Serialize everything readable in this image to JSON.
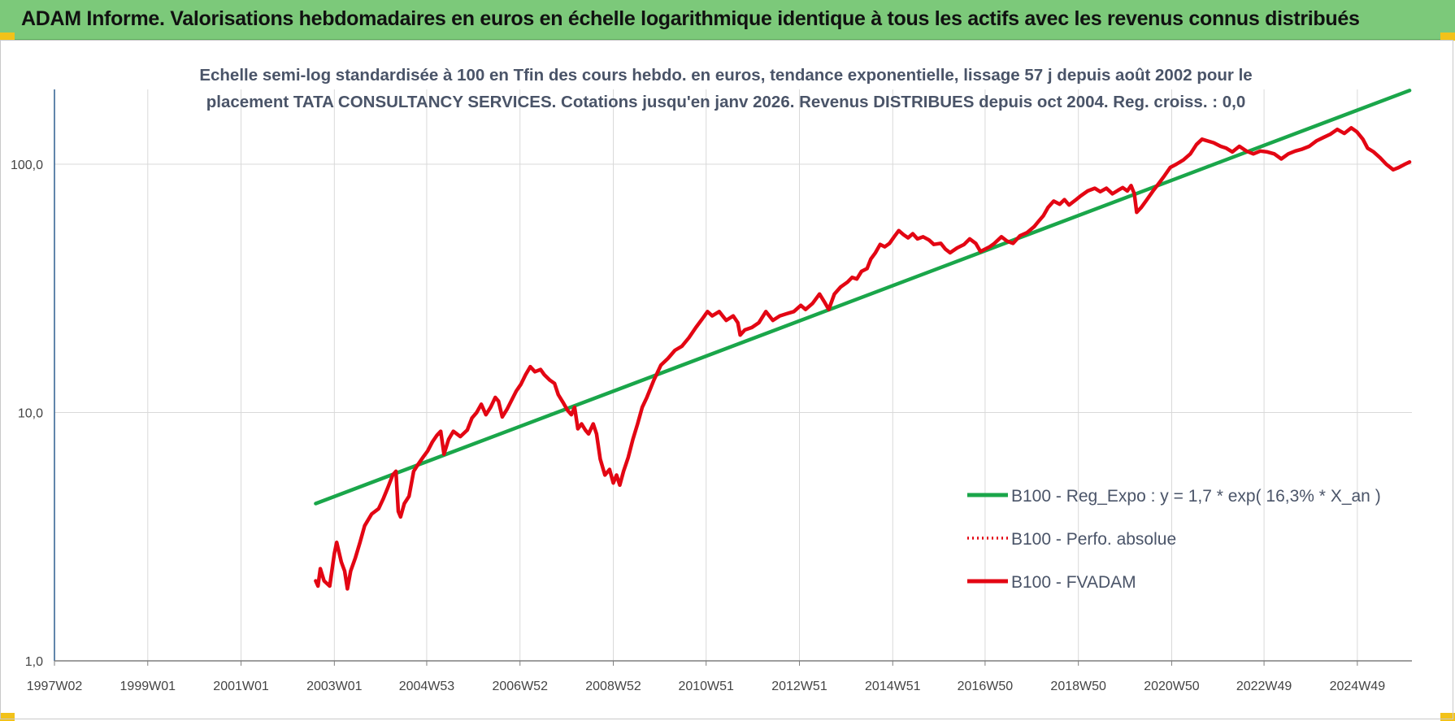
{
  "banner": {
    "title": "ADAM Informe. Valorisations hebdomadaires en euros en échelle logarithmique identique à tous les actifs avec les revenus connus distribués"
  },
  "colors": {
    "banner_bg": "#7cc97a",
    "corner_accent": "#f2c21a",
    "trend_green": "#1aa64a",
    "fvadam_red": "#e30613",
    "perfo_red": "#e30613",
    "title_color": "#4a5468",
    "grid": "#d9d9d9",
    "axis": "#2f5f8f"
  },
  "chart_data": {
    "type": "line",
    "title_lines": [
      "Echelle semi-log standardisée à 100 en Tfin des cours hebdo. en euros, tendance exponentielle, lissage 57 j depuis août 2002 pour le",
      "placement TATA CONSULTANCY SERVICES. Cotations jusqu'en janv 2026. Revenus DISTRIBUES depuis oct 2004. Reg. croiss. : 0,0"
    ],
    "y_scale": "log",
    "ylim": [
      1,
      200
    ],
    "y_ticks": [
      {
        "value": 1,
        "label": "1,0"
      },
      {
        "value": 10,
        "label": "10,0"
      },
      {
        "value": 100,
        "label": "100,0"
      }
    ],
    "xlim": [
      1997.0,
      2026.1
    ],
    "x_ticks": [
      {
        "value": 1997.0,
        "label": "1997W02"
      },
      {
        "value": 1999.0,
        "label": "1999W01"
      },
      {
        "value": 2001.0,
        "label": "2001W01"
      },
      {
        "value": 2003.0,
        "label": "2003W01"
      },
      {
        "value": 2004.98,
        "label": "2004W53"
      },
      {
        "value": 2006.98,
        "label": "2006W52"
      },
      {
        "value": 2008.98,
        "label": "2008W52"
      },
      {
        "value": 2010.97,
        "label": "2010W51"
      },
      {
        "value": 2012.97,
        "label": "2012W51"
      },
      {
        "value": 2014.97,
        "label": "2014W51"
      },
      {
        "value": 2016.95,
        "label": "2016W50"
      },
      {
        "value": 2018.95,
        "label": "2018W50"
      },
      {
        "value": 2020.95,
        "label": "2020W50"
      },
      {
        "value": 2022.93,
        "label": "2022W49"
      },
      {
        "value": 2024.93,
        "label": "2024W49"
      }
    ],
    "grid": true,
    "legend_position": "bottom-right",
    "series": [
      {
        "name": "B100 - Reg_Expo : y = 1,7 * exp( 16,3% *  X_an )",
        "style": "solid",
        "color": "#1aa64a",
        "points": [
          [
            2002.6,
            4.3
          ],
          [
            2026.05,
            198
          ]
        ]
      },
      {
        "name": "B100 - Perfo. absolue",
        "style": "dotted",
        "color": "#e30613",
        "points": []
      },
      {
        "name": "B100 - FVADAM",
        "style": "solid",
        "color": "#e30613",
        "points": [
          [
            2002.6,
            2.1
          ],
          [
            2002.65,
            2.0
          ],
          [
            2002.7,
            2.35
          ],
          [
            2002.78,
            2.1
          ],
          [
            2002.9,
            2.0
          ],
          [
            2003.0,
            2.7
          ],
          [
            2003.05,
            3.0
          ],
          [
            2003.15,
            2.5
          ],
          [
            2003.22,
            2.3
          ],
          [
            2003.28,
            1.95
          ],
          [
            2003.35,
            2.3
          ],
          [
            2003.45,
            2.6
          ],
          [
            2003.55,
            3.0
          ],
          [
            2003.65,
            3.5
          ],
          [
            2003.8,
            3.9
          ],
          [
            2003.95,
            4.1
          ],
          [
            2004.05,
            4.5
          ],
          [
            2004.15,
            5.0
          ],
          [
            2004.25,
            5.6
          ],
          [
            2004.32,
            5.8
          ],
          [
            2004.37,
            4.0
          ],
          [
            2004.42,
            3.8
          ],
          [
            2004.5,
            4.3
          ],
          [
            2004.6,
            4.6
          ],
          [
            2004.7,
            5.8
          ],
          [
            2004.8,
            6.2
          ],
          [
            2004.9,
            6.6
          ],
          [
            2005.0,
            7.0
          ],
          [
            2005.1,
            7.6
          ],
          [
            2005.2,
            8.1
          ],
          [
            2005.28,
            8.4
          ],
          [
            2005.35,
            6.8
          ],
          [
            2005.45,
            7.8
          ],
          [
            2005.55,
            8.4
          ],
          [
            2005.7,
            8.0
          ],
          [
            2005.85,
            8.5
          ],
          [
            2005.95,
            9.5
          ],
          [
            2006.05,
            10.0
          ],
          [
            2006.15,
            10.8
          ],
          [
            2006.25,
            9.8
          ],
          [
            2006.35,
            10.5
          ],
          [
            2006.45,
            11.5
          ],
          [
            2006.52,
            11.1
          ],
          [
            2006.6,
            9.6
          ],
          [
            2006.7,
            10.3
          ],
          [
            2006.8,
            11.2
          ],
          [
            2006.9,
            12.2
          ],
          [
            2007.0,
            13.0
          ],
          [
            2007.1,
            14.2
          ],
          [
            2007.2,
            15.3
          ],
          [
            2007.3,
            14.6
          ],
          [
            2007.42,
            14.9
          ],
          [
            2007.5,
            14.2
          ],
          [
            2007.62,
            13.5
          ],
          [
            2007.72,
            13.1
          ],
          [
            2007.8,
            11.8
          ],
          [
            2007.9,
            11.0
          ],
          [
            2008.0,
            10.2
          ],
          [
            2008.08,
            9.8
          ],
          [
            2008.15,
            10.5
          ],
          [
            2008.22,
            8.6
          ],
          [
            2008.3,
            9.0
          ],
          [
            2008.38,
            8.5
          ],
          [
            2008.45,
            8.2
          ],
          [
            2008.55,
            9.0
          ],
          [
            2008.62,
            8.2
          ],
          [
            2008.7,
            6.5
          ],
          [
            2008.8,
            5.6
          ],
          [
            2008.9,
            5.9
          ],
          [
            2008.98,
            5.2
          ],
          [
            2009.05,
            5.6
          ],
          [
            2009.12,
            5.1
          ],
          [
            2009.2,
            5.8
          ],
          [
            2009.3,
            6.6
          ],
          [
            2009.4,
            7.8
          ],
          [
            2009.5,
            9.0
          ],
          [
            2009.6,
            10.5
          ],
          [
            2009.7,
            11.5
          ],
          [
            2009.85,
            13.5
          ],
          [
            2010.0,
            15.5
          ],
          [
            2010.15,
            16.5
          ],
          [
            2010.3,
            17.8
          ],
          [
            2010.45,
            18.5
          ],
          [
            2010.6,
            20.0
          ],
          [
            2010.75,
            22.0
          ],
          [
            2010.9,
            24.0
          ],
          [
            2011.0,
            25.5
          ],
          [
            2011.1,
            24.5
          ],
          [
            2011.25,
            25.5
          ],
          [
            2011.4,
            23.5
          ],
          [
            2011.55,
            24.5
          ],
          [
            2011.65,
            23.0
          ],
          [
            2011.7,
            20.5
          ],
          [
            2011.8,
            21.5
          ],
          [
            2011.95,
            22.0
          ],
          [
            2012.1,
            23.0
          ],
          [
            2012.25,
            25.5
          ],
          [
            2012.4,
            23.5
          ],
          [
            2012.55,
            24.5
          ],
          [
            2012.7,
            25.0
          ],
          [
            2012.85,
            25.5
          ],
          [
            2013.0,
            27.0
          ],
          [
            2013.1,
            26.0
          ],
          [
            2013.25,
            27.5
          ],
          [
            2013.4,
            30.0
          ],
          [
            2013.5,
            28.0
          ],
          [
            2013.6,
            26.0
          ],
          [
            2013.72,
            30.0
          ],
          [
            2013.85,
            32.0
          ],
          [
            2014.0,
            33.5
          ],
          [
            2014.1,
            35.0
          ],
          [
            2014.2,
            34.5
          ],
          [
            2014.3,
            37.0
          ],
          [
            2014.42,
            38.0
          ],
          [
            2014.5,
            41.5
          ],
          [
            2014.6,
            44.0
          ],
          [
            2014.7,
            47.5
          ],
          [
            2014.8,
            46.5
          ],
          [
            2014.9,
            48.0
          ],
          [
            2015.0,
            51.0
          ],
          [
            2015.1,
            54.0
          ],
          [
            2015.2,
            52.0
          ],
          [
            2015.3,
            50.5
          ],
          [
            2015.4,
            52.5
          ],
          [
            2015.5,
            50.0
          ],
          [
            2015.62,
            51.0
          ],
          [
            2015.75,
            49.5
          ],
          [
            2015.85,
            47.5
          ],
          [
            2016.0,
            48.0
          ],
          [
            2016.1,
            45.5
          ],
          [
            2016.2,
            44.0
          ],
          [
            2016.35,
            46.0
          ],
          [
            2016.5,
            47.5
          ],
          [
            2016.62,
            50.0
          ],
          [
            2016.75,
            48.0
          ],
          [
            2016.85,
            44.5
          ],
          [
            2016.95,
            45.5
          ],
          [
            2017.05,
            46.5
          ],
          [
            2017.15,
            48.0
          ],
          [
            2017.3,
            51.0
          ],
          [
            2017.42,
            49.0
          ],
          [
            2017.55,
            48.0
          ],
          [
            2017.7,
            51.5
          ],
          [
            2017.85,
            53.0
          ],
          [
            2018.0,
            56.0
          ],
          [
            2018.1,
            59.0
          ],
          [
            2018.2,
            62.0
          ],
          [
            2018.3,
            67.0
          ],
          [
            2018.42,
            71.0
          ],
          [
            2018.55,
            69.0
          ],
          [
            2018.65,
            72.0
          ],
          [
            2018.75,
            68.5
          ],
          [
            2018.9,
            72.0
          ],
          [
            2019.0,
            74.5
          ],
          [
            2019.15,
            78.0
          ],
          [
            2019.3,
            80.0
          ],
          [
            2019.42,
            77.5
          ],
          [
            2019.55,
            80.0
          ],
          [
            2019.68,
            76.0
          ],
          [
            2019.8,
            78.5
          ],
          [
            2019.9,
            80.5
          ],
          [
            2020.0,
            78.0
          ],
          [
            2020.08,
            82.0
          ],
          [
            2020.15,
            76.0
          ],
          [
            2020.2,
            64.0
          ],
          [
            2020.3,
            67.0
          ],
          [
            2020.42,
            72.0
          ],
          [
            2020.55,
            78.0
          ],
          [
            2020.68,
            84.0
          ],
          [
            2020.8,
            90.0
          ],
          [
            2020.92,
            97.0
          ],
          [
            2021.05,
            100.0
          ],
          [
            2021.2,
            104.0
          ],
          [
            2021.35,
            110.0
          ],
          [
            2021.48,
            120.0
          ],
          [
            2021.6,
            126.0
          ],
          [
            2021.72,
            124.0
          ],
          [
            2021.85,
            122.0
          ],
          [
            2022.0,
            118.0
          ],
          [
            2022.12,
            116.0
          ],
          [
            2022.25,
            112.0
          ],
          [
            2022.4,
            118.0
          ],
          [
            2022.55,
            113.0
          ],
          [
            2022.7,
            110.0
          ],
          [
            2022.85,
            113.0
          ],
          [
            2023.0,
            112.0
          ],
          [
            2023.15,
            110.0
          ],
          [
            2023.3,
            105.0
          ],
          [
            2023.45,
            110.0
          ],
          [
            2023.6,
            113.0
          ],
          [
            2023.75,
            115.0
          ],
          [
            2023.9,
            118.0
          ],
          [
            2024.05,
            124.0
          ],
          [
            2024.2,
            128.0
          ],
          [
            2024.35,
            132.0
          ],
          [
            2024.5,
            138.0
          ],
          [
            2024.65,
            133.0
          ],
          [
            2024.8,
            140.0
          ],
          [
            2024.92,
            135.0
          ],
          [
            2025.05,
            126.0
          ],
          [
            2025.15,
            116.0
          ],
          [
            2025.28,
            112.0
          ],
          [
            2025.42,
            106.0
          ],
          [
            2025.55,
            100.0
          ],
          [
            2025.7,
            95.0
          ],
          [
            2025.82,
            97.0
          ],
          [
            2025.95,
            100.0
          ],
          [
            2026.05,
            102.0
          ]
        ]
      }
    ]
  }
}
